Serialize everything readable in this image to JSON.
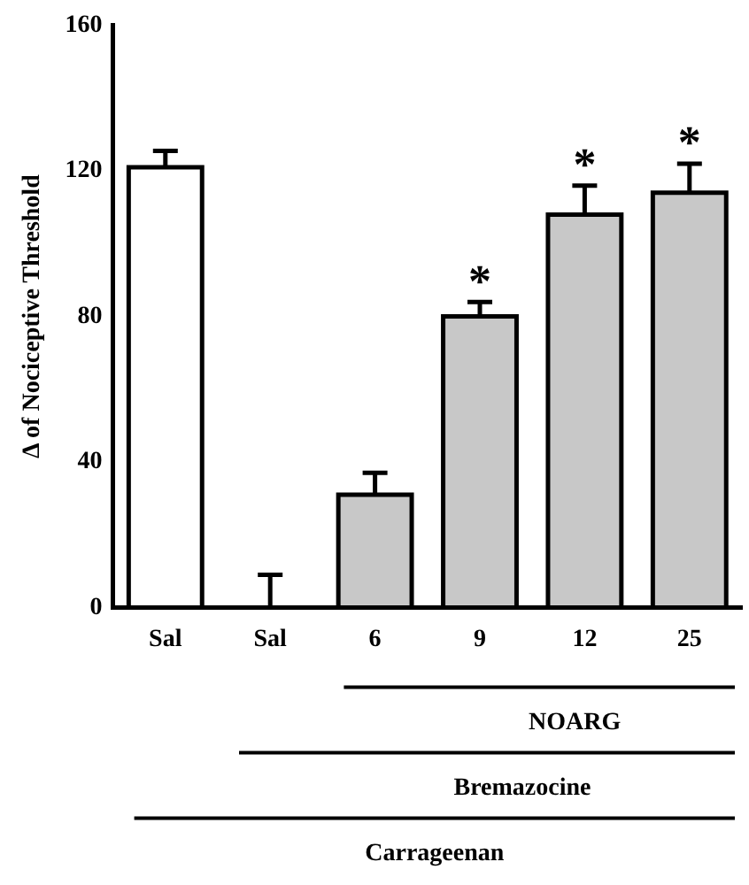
{
  "chart_data": {
    "type": "bar",
    "ylabel": "Δ of Nociceptive Threshold",
    "categories": [
      "Sal",
      "Sal",
      "6",
      "9",
      "12",
      "25"
    ],
    "values": [
      121,
      0,
      31,
      80,
      108,
      114
    ],
    "errors": [
      4.5,
      9,
      6,
      4,
      8,
      8
    ],
    "colors": [
      "#ffffff",
      "#ffffff",
      "#c8c8c8",
      "#c8c8c8",
      "#c8c8c8",
      "#c8c8c8"
    ],
    "ylim": [
      0,
      160
    ],
    "yticks": [
      0,
      40,
      80,
      120,
      160
    ],
    "grid": false,
    "legend": false,
    "value_labels": [
      null,
      null,
      null,
      "*",
      "*",
      "*"
    ],
    "annotations": [
      "NOARG",
      "Bremazocine",
      "Carrageenan"
    ]
  }
}
